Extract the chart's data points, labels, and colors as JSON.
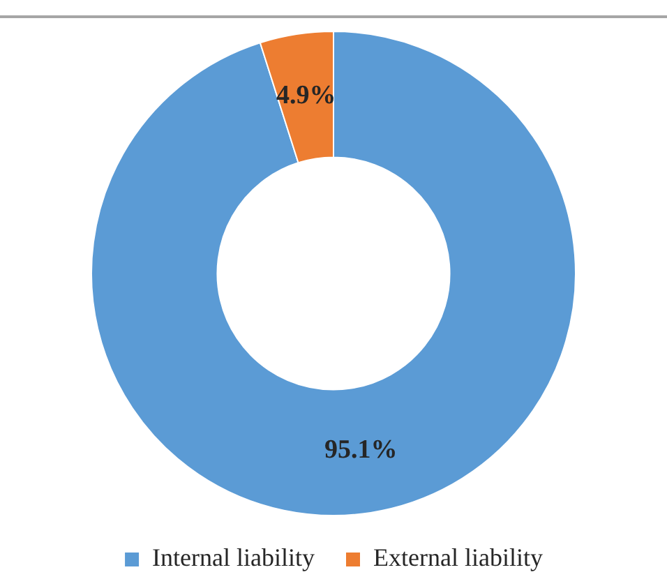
{
  "chart_data": {
    "type": "donut",
    "categories": [
      "Internal liability",
      "External liability"
    ],
    "values": [
      95.1,
      4.9
    ],
    "colors": [
      "#5b9bd5",
      "#ed7d31"
    ],
    "value_labels": [
      "95.1%",
      "4.9%"
    ],
    "legend": "bottom"
  }
}
